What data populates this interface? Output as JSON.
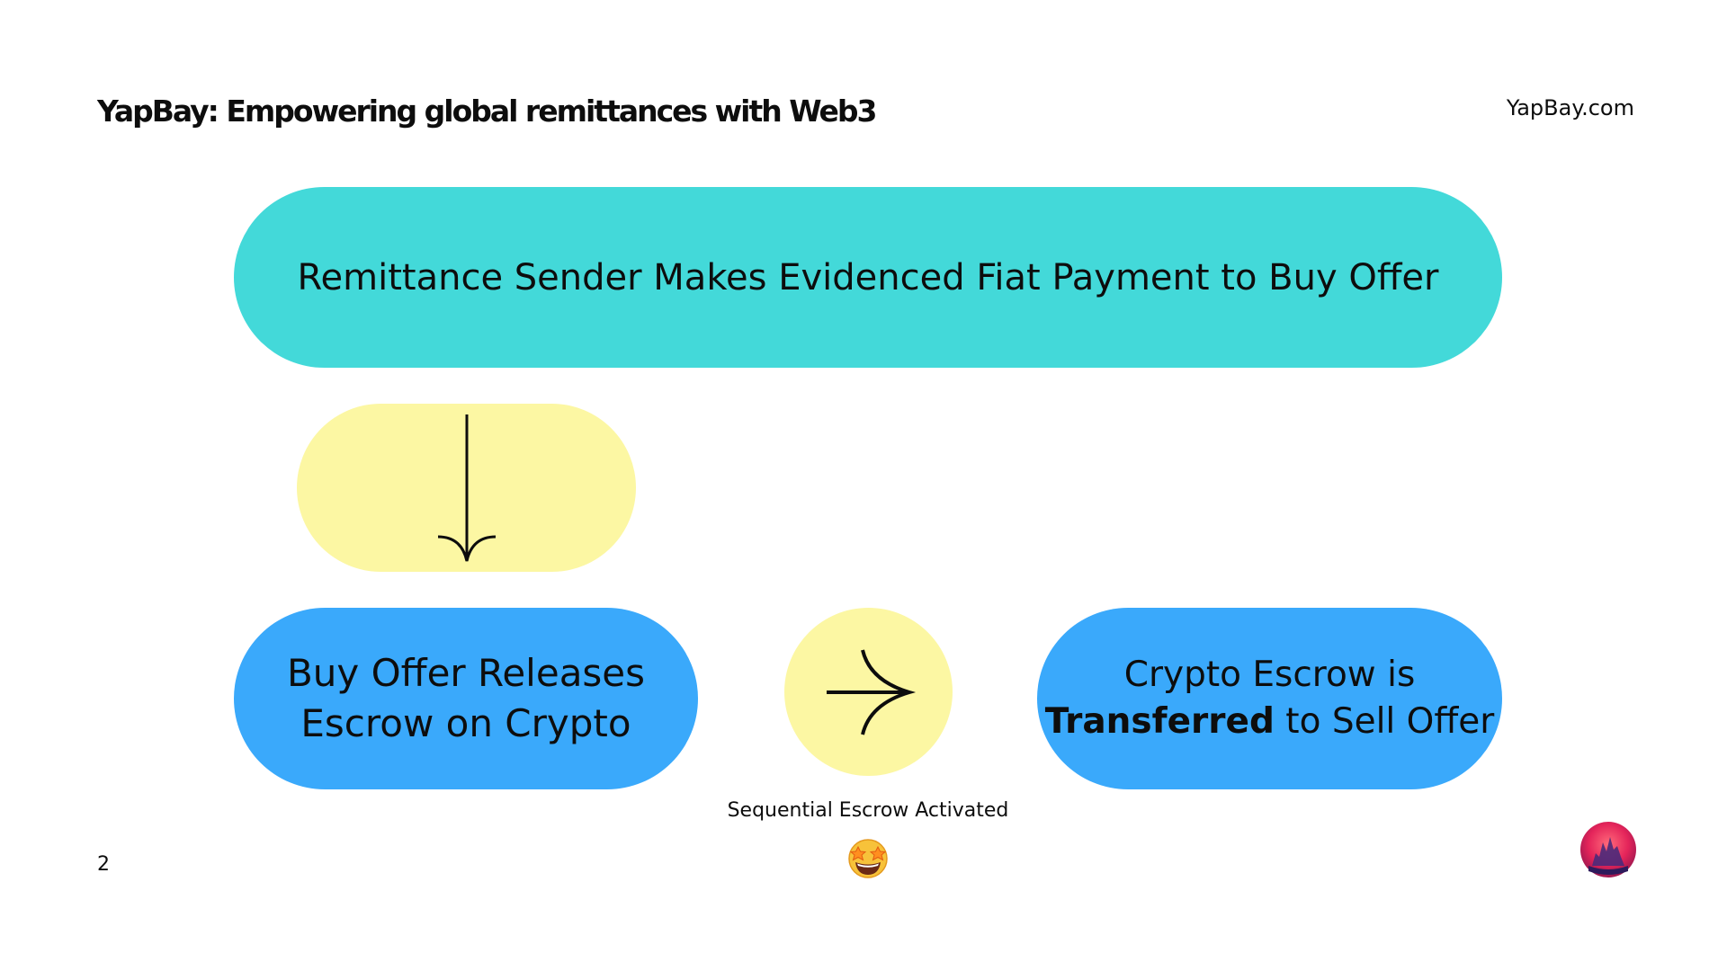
{
  "header": {
    "title": "YapBay: Empowering global remittances with Web3",
    "site": "YapBay.com"
  },
  "diagram": {
    "step1": "Remittance Sender Makes Evidenced Fiat Payment to Buy Offer",
    "step2": {
      "line1": "Buy Offer Releases",
      "line2": "Escrow on Crypto"
    },
    "step3": {
      "line1": "Crypto Escrow is",
      "bold": "Transferred",
      "rest": " to Sell Offer"
    },
    "caption": "Sequential Escrow Activated"
  },
  "footer": {
    "page_number": "2"
  },
  "colors": {
    "teal": "#43d9d9",
    "blue": "#3aa9fb",
    "yellow": "#fcf7a3"
  },
  "icons": {
    "down_arrow": "arrow-down-icon",
    "right_arrow": "arrow-right-icon",
    "emoji": "star-struck-emoji-icon",
    "logo": "yapbay-logo-icon"
  }
}
